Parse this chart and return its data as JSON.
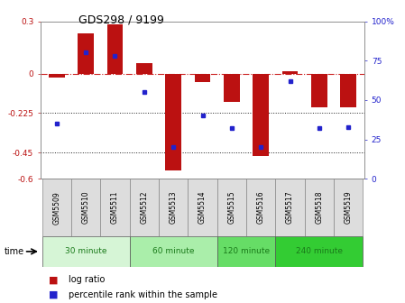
{
  "title": "GDS298 / 9199",
  "samples": [
    "GSM5509",
    "GSM5510",
    "GSM5511",
    "GSM5512",
    "GSM5513",
    "GSM5514",
    "GSM5515",
    "GSM5516",
    "GSM5517",
    "GSM5518",
    "GSM5519"
  ],
  "log_ratio": [
    -0.02,
    0.23,
    0.28,
    0.06,
    -0.55,
    -0.05,
    -0.16,
    -0.47,
    0.015,
    -0.19,
    -0.19
  ],
  "percentile": [
    35,
    80,
    78,
    55,
    20,
    40,
    32,
    20,
    62,
    32,
    33
  ],
  "ylim": [
    -0.6,
    0.3
  ],
  "yticks_left": [
    -0.6,
    -0.45,
    -0.225,
    0.0,
    0.3
  ],
  "ytick_labels_left": [
    "-0.6",
    "-0.45",
    "-0.225",
    "0",
    "0.3"
  ],
  "yticks_right": [
    0,
    25,
    50,
    75,
    100
  ],
  "ytick_labels_right": [
    "0",
    "25",
    "50",
    "75",
    "100%"
  ],
  "bar_color": "#bb1111",
  "dot_color": "#2222cc",
  "hline_color": "#cc2222",
  "dotted_line_color": "#222222",
  "time_groups": [
    {
      "label": "30 minute",
      "start": 0,
      "end": 3,
      "color": "#d6f5d6"
    },
    {
      "label": "60 minute",
      "start": 3,
      "end": 6,
      "color": "#aaeeaa"
    },
    {
      "label": "120 minute",
      "start": 6,
      "end": 8,
      "color": "#66dd66"
    },
    {
      "label": "240 minute",
      "start": 8,
      "end": 11,
      "color": "#33cc33"
    }
  ],
  "legend_log_color": "#bb1111",
  "legend_pct_color": "#2222cc",
  "xlabel_time": "time",
  "background_color": "#ffffff",
  "sample_box_color": "#dddddd",
  "sample_box_edge": "#888888"
}
